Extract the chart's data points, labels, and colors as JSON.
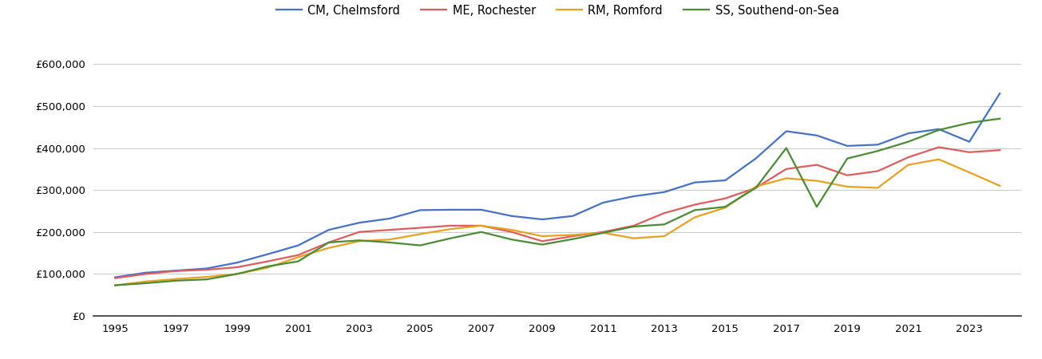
{
  "title": "",
  "legend_labels": [
    "CM, Chelmsford",
    "ME, Rochester",
    "RM, Romford",
    "SS, Southend-on-Sea"
  ],
  "colors": [
    "#4472c4",
    "#e05c5c",
    "#e8a020",
    "#4a8c34"
  ],
  "years": [
    1995,
    1996,
    1997,
    1998,
    1999,
    2000,
    2001,
    2002,
    2003,
    2004,
    2005,
    2006,
    2007,
    2008,
    2009,
    2010,
    2011,
    2012,
    2013,
    2014,
    2015,
    2016,
    2017,
    2018,
    2019,
    2020,
    2021,
    2022,
    2023,
    2024
  ],
  "CM": [
    92000,
    103000,
    108000,
    113000,
    127000,
    147000,
    168000,
    205000,
    222000,
    232000,
    252000,
    253000,
    253000,
    238000,
    230000,
    238000,
    270000,
    285000,
    295000,
    318000,
    323000,
    375000,
    440000,
    430000,
    405000,
    408000,
    435000,
    445000,
    415000,
    530000
  ],
  "ME": [
    90000,
    100000,
    107000,
    110000,
    116000,
    130000,
    145000,
    175000,
    200000,
    205000,
    210000,
    215000,
    215000,
    200000,
    178000,
    190000,
    200000,
    215000,
    245000,
    265000,
    280000,
    305000,
    350000,
    360000,
    335000,
    345000,
    378000,
    402000,
    390000,
    395000
  ],
  "RM": [
    73000,
    82000,
    88000,
    93000,
    100000,
    115000,
    140000,
    162000,
    178000,
    182000,
    195000,
    207000,
    215000,
    205000,
    190000,
    193000,
    198000,
    185000,
    190000,
    235000,
    258000,
    308000,
    328000,
    322000,
    308000,
    305000,
    360000,
    373000,
    342000,
    310000
  ],
  "SS": [
    73000,
    78000,
    84000,
    87000,
    100000,
    118000,
    130000,
    175000,
    180000,
    175000,
    168000,
    185000,
    200000,
    182000,
    170000,
    183000,
    198000,
    213000,
    218000,
    252000,
    260000,
    305000,
    400000,
    260000,
    375000,
    393000,
    415000,
    443000,
    460000,
    470000
  ],
  "ylim": [
    0,
    650000
  ],
  "yticks": [
    0,
    100000,
    200000,
    300000,
    400000,
    500000,
    600000
  ],
  "background_color": "#ffffff",
  "grid_color": "#cccccc",
  "linewidth": 1.6
}
